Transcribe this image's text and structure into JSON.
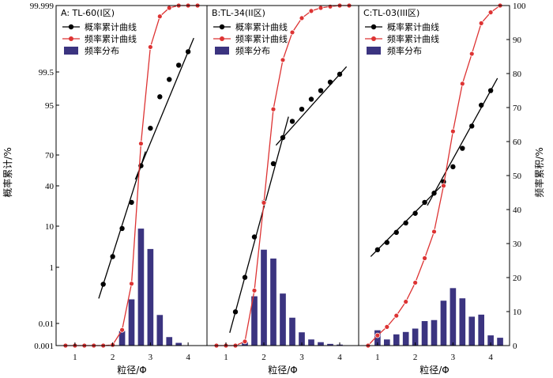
{
  "y_left_label": "概率累计/%",
  "y_right_label": "频率累积/%",
  "x_label": "粒径/Φ",
  "legend": {
    "prob": "概率累计曲线",
    "freq": "频率累计曲线",
    "dist": "频率分布"
  },
  "colors": {
    "prob": "#000000",
    "freq": "#dd3333",
    "bar": "#3b3480"
  },
  "chart_data": [
    {
      "type": "bar",
      "title": "A: TL-60(I区)",
      "xlim": [
        0.5,
        4.5
      ],
      "x_ticks": [
        1,
        2,
        3,
        4
      ],
      "left_axis": {
        "scale": "probability",
        "ticks": [
          "0.001",
          "0.01",
          "1",
          "10",
          "40",
          "70",
          "95",
          "99.5",
          "99.999"
        ]
      },
      "right_axis": {
        "range": [
          0,
          100
        ],
        "ticks": [
          0,
          10,
          20,
          30,
          40,
          50,
          60,
          70,
          80,
          90,
          100
        ]
      },
      "frequency_distribution": {
        "x": [
          2.25,
          2.5,
          2.75,
          3.0,
          3.25,
          3.5,
          3.75
        ],
        "values": [
          4.3,
          13.6,
          34.4,
          28.4,
          9.0,
          2.5,
          0.8
        ]
      },
      "cumulative_frequency": {
        "x": [
          0.75,
          1.0,
          1.25,
          1.5,
          1.75,
          2.0,
          2.25,
          2.5,
          2.75,
          3.0,
          3.25,
          3.5,
          3.75,
          4.0,
          4.25
        ],
        "values": [
          0,
          0,
          0,
          0,
          0,
          0.2,
          4.6,
          18.2,
          59.4,
          87.8,
          96.8,
          99.3,
          100,
          100,
          100
        ]
      },
      "cumulative_probability": {
        "x": [
          1.75,
          2.0,
          2.25,
          2.5,
          2.75,
          3.0,
          3.25,
          3.5,
          3.75,
          4.0
        ],
        "values": [
          0.3,
          2.0,
          9.0,
          25.0,
          60.0,
          87.0,
          97.0,
          99.1,
          99.7,
          99.9
        ]
      }
    },
    {
      "type": "bar",
      "title": "B:TL-34(II区)",
      "xlim": [
        0.5,
        4.5
      ],
      "x_ticks": [
        1,
        2,
        3,
        4
      ],
      "right_axis": {
        "range": [
          0,
          100
        ],
        "ticks": [
          0,
          10,
          20,
          30,
          40,
          50,
          60,
          70,
          80,
          90,
          100
        ]
      },
      "frequency_distribution": {
        "x": [
          1.5,
          1.75,
          2.0,
          2.25,
          2.5,
          2.75,
          3.0,
          3.25,
          3.5,
          3.75,
          4.0
        ],
        "values": [
          1.0,
          14.5,
          28.2,
          25.6,
          15.3,
          8.2,
          3.9,
          1.8,
          1.0,
          0.5,
          0.3
        ]
      },
      "cumulative_frequency": {
        "x": [
          0.75,
          1.0,
          1.25,
          1.5,
          1.75,
          2.0,
          2.25,
          2.5,
          2.75,
          3.0,
          3.25,
          3.5,
          3.75,
          4.0,
          4.25
        ],
        "values": [
          0,
          0,
          0,
          1.2,
          16.2,
          42.0,
          69.5,
          84.0,
          92.1,
          96.3,
          98.4,
          99.3,
          99.7,
          100,
          100
        ]
      },
      "cumulative_probability": {
        "x": [
          1.25,
          1.5,
          1.75,
          2.0,
          2.25,
          2.5,
          2.75,
          3.0,
          3.25,
          3.5,
          3.75,
          4.0
        ],
        "values": [
          0.03,
          0.5,
          6.0,
          25.0,
          62.0,
          82.0,
          90.0,
          94.0,
          96.5,
          98.0,
          98.9,
          99.4
        ]
      }
    },
    {
      "type": "bar",
      "title": "C:TL-03(III区)",
      "xlim": [
        0.5,
        4.5
      ],
      "x_ticks": [
        1,
        2,
        3,
        4
      ],
      "right_axis": {
        "range": [
          0,
          100
        ],
        "ticks": [
          0,
          10,
          20,
          30,
          40,
          50,
          60,
          70,
          80,
          90,
          100
        ]
      },
      "frequency_distribution": {
        "x": [
          1.0,
          1.25,
          1.5,
          1.75,
          2.0,
          2.25,
          2.5,
          2.75,
          3.0,
          3.25,
          3.5,
          3.75,
          4.0,
          4.25
        ],
        "values": [
          4.5,
          1.8,
          3.3,
          4.0,
          5.0,
          7.2,
          7.5,
          13.2,
          16.9,
          13.9,
          8.5,
          9.1,
          3.0,
          2.3
        ]
      },
      "cumulative_frequency": {
        "x": [
          0.75,
          1.0,
          1.25,
          1.5,
          1.75,
          2.0,
          2.25,
          2.5,
          2.75,
          3.0,
          3.25,
          3.5,
          3.75,
          4.0,
          4.25
        ],
        "values": [
          0,
          3.0,
          5.5,
          8.8,
          12.9,
          18.5,
          25.7,
          33.5,
          47.0,
          63.0,
          77.0,
          85.8,
          94.8,
          98.0,
          100
        ]
      },
      "cumulative_probability": {
        "x": [
          1.0,
          1.25,
          1.5,
          1.75,
          2.0,
          2.25,
          2.5,
          2.75,
          3.0,
          3.25,
          3.5,
          3.75,
          4.0
        ],
        "values": [
          3.0,
          4.5,
          7.5,
          11.5,
          17.0,
          25.0,
          33.0,
          44.0,
          59.0,
          75.0,
          88.0,
          95.0,
          98.0
        ]
      }
    }
  ]
}
